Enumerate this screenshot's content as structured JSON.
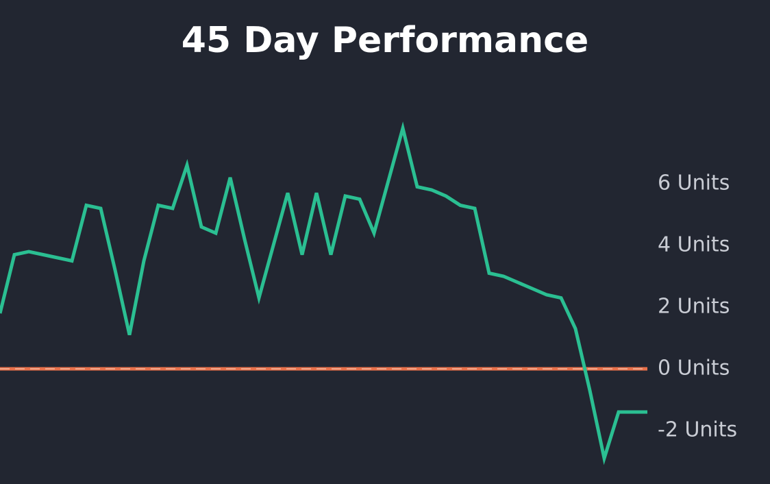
{
  "chart_data": {
    "type": "line",
    "title": "45 Day Performance",
    "series": [
      {
        "color": "#2bbf92",
        "values": [
          1.8,
          3.7,
          3.8,
          3.7,
          3.6,
          3.5,
          5.3,
          5.2,
          3.2,
          1.1,
          3.5,
          5.3,
          5.2,
          6.6,
          4.6,
          4.4,
          6.2,
          4.2,
          2.3,
          4.0,
          5.7,
          3.7,
          5.7,
          3.7,
          5.6,
          5.5,
          4.4,
          6.1,
          7.8,
          5.9,
          5.8,
          5.6,
          5.3,
          5.2,
          3.1,
          3.0,
          2.8,
          2.6,
          2.4,
          2.3,
          1.3,
          -0.7,
          -2.9,
          -1.4,
          -1.4,
          -1.4
        ]
      }
    ],
    "ylim": [
      -3.5,
      9.5
    ],
    "yticks": [
      {
        "value": -2,
        "label": "-2 Units"
      },
      {
        "value": 0,
        "label": "0 Units"
      },
      {
        "value": 2,
        "label": "2 Units"
      },
      {
        "value": 4,
        "label": "4 Units"
      },
      {
        "value": 6,
        "label": "6 Units"
      }
    ],
    "reference_line": {
      "value": 0,
      "color": "#e8704a"
    },
    "grid": false
  }
}
